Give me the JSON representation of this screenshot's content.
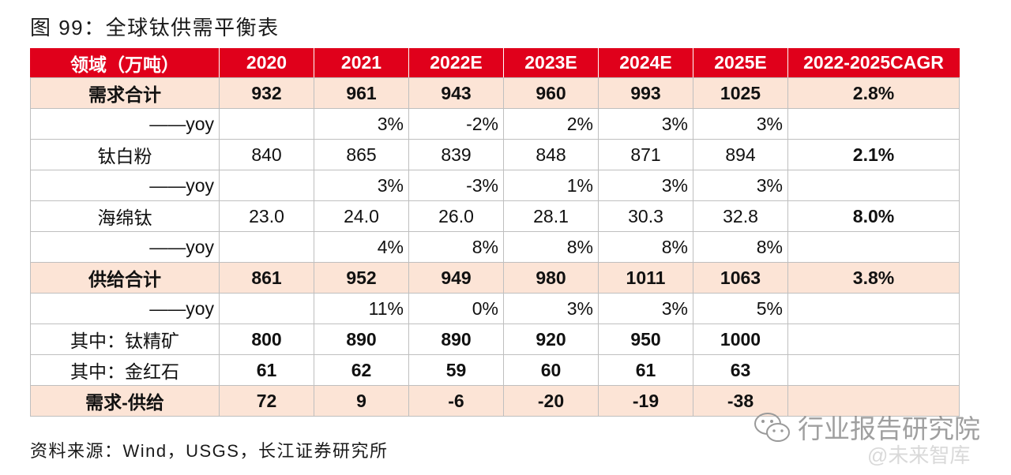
{
  "colors": {
    "header_bg": "#E0001B",
    "highlight_row_bg": "#FCE4D6",
    "grid_line": "#BFBFBF"
  },
  "chart_data": {
    "type": "table",
    "title": "图 99：全球钛供需平衡表",
    "columns": [
      "领域（万吨）",
      "2020",
      "2021",
      "2022E",
      "2023E",
      "2024E",
      "2025E",
      "2022-2025CAGR"
    ],
    "rows": [
      {
        "label": "需求合计",
        "values": [
          "932",
          "961",
          "943",
          "960",
          "993",
          "1025"
        ],
        "cagr": "2.8%"
      },
      {
        "label": "——yoy",
        "values": [
          null,
          "3%",
          "-2%",
          "2%",
          "3%",
          "3%"
        ],
        "cagr": null
      },
      {
        "label": "钛白粉",
        "values": [
          "840",
          "865",
          "839",
          "848",
          "871",
          "894"
        ],
        "cagr": "2.1%"
      },
      {
        "label": "——yoy",
        "values": [
          null,
          "3%",
          "-3%",
          "1%",
          "3%",
          "3%"
        ],
        "cagr": null
      },
      {
        "label": "海绵钛",
        "values": [
          "23.0",
          "24.0",
          "26.0",
          "28.1",
          "30.3",
          "32.8"
        ],
        "cagr": "8.0%"
      },
      {
        "label": "——yoy",
        "values": [
          null,
          "4%",
          "8%",
          "8%",
          "8%",
          "8%"
        ],
        "cagr": null
      },
      {
        "label": "供给合计",
        "values": [
          "861",
          "952",
          "949",
          "980",
          "1011",
          "1063"
        ],
        "cagr": "3.8%"
      },
      {
        "label": "——yoy",
        "values": [
          null,
          "11%",
          "0%",
          "3%",
          "3%",
          "5%"
        ],
        "cagr": null
      },
      {
        "label": "其中：钛精矿",
        "values": [
          "800",
          "890",
          "890",
          "920",
          "950",
          "1000"
        ],
        "cagr": null
      },
      {
        "label": "其中：金红石",
        "values": [
          "61",
          "62",
          "59",
          "60",
          "61",
          "63"
        ],
        "cagr": null
      },
      {
        "label": "需求-供给",
        "values": [
          "72",
          "9",
          "-6",
          "-20",
          "-19",
          "-38"
        ],
        "cagr": null
      }
    ]
  },
  "footer": {
    "source": "资料来源：Wind，USGS，长江证券研究所"
  },
  "watermark": {
    "icon": "wechat-icon",
    "text": "行业报告研究院",
    "handle": "@未来智库"
  }
}
